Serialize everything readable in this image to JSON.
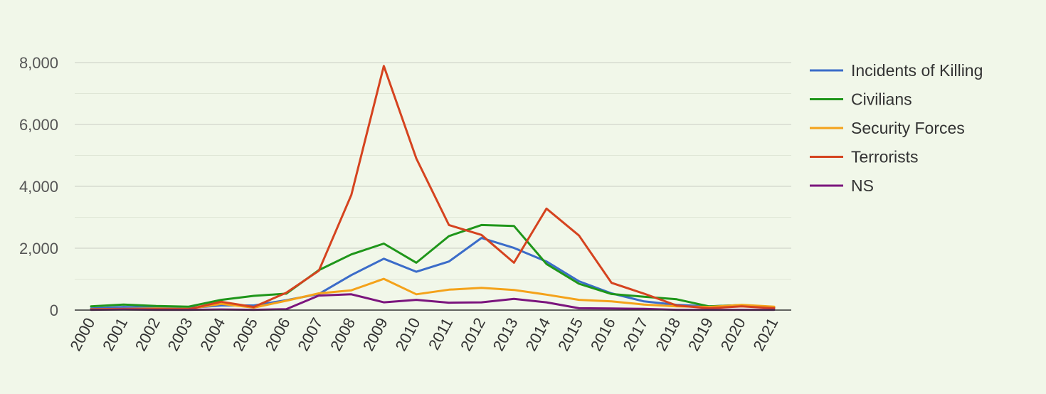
{
  "chart_data": {
    "type": "line",
    "title": "",
    "xlabel": "",
    "ylabel": "",
    "categories": [
      "2000",
      "2001",
      "2002",
      "2003",
      "2004",
      "2005",
      "2006",
      "2007",
      "2008",
      "2009",
      "2010",
      "2011",
      "2012",
      "2013",
      "2014",
      "2015",
      "2016",
      "2017",
      "2018",
      "2019",
      "2020",
      "2021"
    ],
    "ylim": [
      0,
      8500
    ],
    "y_ticks": [
      0,
      2000,
      4000,
      6000,
      8000
    ],
    "y_tick_labels": [
      "0",
      "2,000",
      "4,000",
      "6,000",
      "8,000"
    ],
    "grid": true,
    "legend_position": "right",
    "series": [
      {
        "name": "Incidents of Killing",
        "color": "#3b6cc9",
        "values": [
          50,
          100,
          80,
          70,
          150,
          150,
          320,
          520,
          1130,
          1660,
          1240,
          1570,
          2330,
          2010,
          1570,
          930,
          540,
          280,
          170,
          120,
          160,
          80
        ]
      },
      {
        "name": "Civilians",
        "color": "#1f961a",
        "values": [
          120,
          180,
          130,
          110,
          330,
          460,
          530,
          1290,
          1800,
          2150,
          1530,
          2390,
          2750,
          2720,
          1490,
          850,
          520,
          430,
          350,
          120,
          160,
          100
        ]
      },
      {
        "name": "Security Forces",
        "color": "#f4a21a",
        "values": [
          30,
          40,
          50,
          40,
          200,
          80,
          300,
          540,
          640,
          1010,
          510,
          660,
          720,
          650,
          500,
          330,
          280,
          180,
          120,
          100,
          170,
          110
        ]
      },
      {
        "name": "Terrorists",
        "color": "#d5431f",
        "values": [
          20,
          30,
          30,
          30,
          270,
          100,
          560,
          1270,
          3720,
          7890,
          4900,
          2750,
          2430,
          1530,
          3280,
          2410,
          880,
          530,
          150,
          60,
          120,
          60
        ]
      },
      {
        "name": "NS",
        "color": "#7b157d",
        "values": [
          10,
          20,
          10,
          10,
          20,
          10,
          30,
          470,
          510,
          250,
          330,
          240,
          250,
          360,
          250,
          60,
          50,
          40,
          10,
          10,
          10,
          10
        ]
      }
    ]
  }
}
